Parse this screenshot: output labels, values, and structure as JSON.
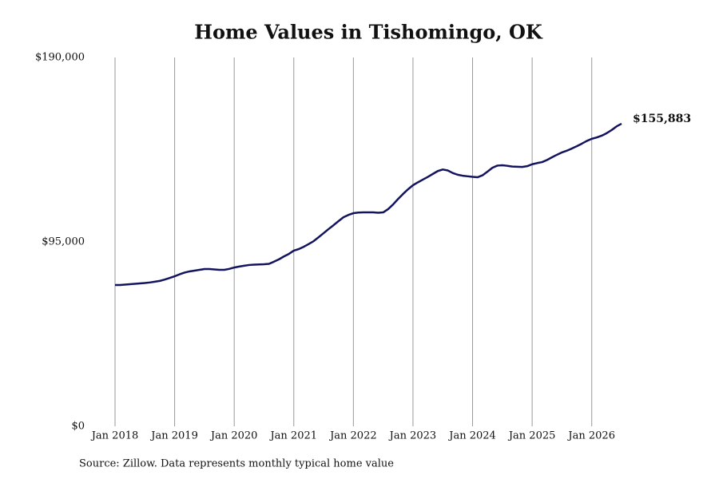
{
  "chart_data": {
    "type": "line",
    "title": "Home Values in Tishomingo, OK",
    "source": "Source: Zillow. Data represents monthly typical home value",
    "x": [
      "2018-01",
      "2018-02",
      "2018-03",
      "2018-04",
      "2018-05",
      "2018-06",
      "2018-07",
      "2018-08",
      "2018-09",
      "2018-10",
      "2018-11",
      "2018-12",
      "2019-01",
      "2019-02",
      "2019-03",
      "2019-04",
      "2019-05",
      "2019-06",
      "2019-07",
      "2019-08",
      "2019-09",
      "2019-10",
      "2019-11",
      "2019-12",
      "2020-01",
      "2020-02",
      "2020-03",
      "2020-04",
      "2020-05",
      "2020-06",
      "2020-07",
      "2020-08",
      "2020-09",
      "2020-10",
      "2020-11",
      "2020-12",
      "2021-01",
      "2021-02",
      "2021-03",
      "2021-04",
      "2021-05",
      "2021-06",
      "2021-07",
      "2021-08",
      "2021-09",
      "2021-10",
      "2021-11",
      "2021-12",
      "2022-01",
      "2022-02",
      "2022-03",
      "2022-04",
      "2022-05",
      "2022-06",
      "2022-07",
      "2022-08",
      "2022-09",
      "2022-10",
      "2022-11",
      "2022-12",
      "2023-01",
      "2023-02",
      "2023-03",
      "2023-04",
      "2023-05",
      "2023-06",
      "2023-07",
      "2023-08",
      "2023-09",
      "2023-10",
      "2023-11",
      "2023-12",
      "2024-01",
      "2024-02",
      "2024-03",
      "2024-04",
      "2024-05",
      "2024-06",
      "2024-07",
      "2024-08",
      "2024-09",
      "2024-10",
      "2024-11",
      "2024-12",
      "2025-01",
      "2025-02",
      "2025-03",
      "2025-04",
      "2025-05",
      "2025-06",
      "2025-07",
      "2025-08",
      "2025-09",
      "2025-10",
      "2025-11",
      "2025-12",
      "2026-01",
      "2026-02",
      "2026-03",
      "2026-04",
      "2026-05",
      "2026-06",
      "2026-07"
    ],
    "series": [
      {
        "color": "#14145e",
        "values": [
          72800,
          72800,
          73000,
          73200,
          73400,
          73600,
          73800,
          74100,
          74500,
          74900,
          75600,
          76400,
          77300,
          78300,
          79200,
          79800,
          80200,
          80600,
          81000,
          81000,
          80800,
          80600,
          80600,
          81100,
          81800,
          82300,
          82700,
          83100,
          83300,
          83400,
          83500,
          83700,
          84800,
          86000,
          87500,
          88800,
          90500,
          91300,
          92500,
          93900,
          95400,
          97400,
          99500,
          101600,
          103600,
          105700,
          107700,
          108900,
          109800,
          110100,
          110200,
          110200,
          110200,
          110000,
          110200,
          111900,
          114300,
          117100,
          119700,
          122100,
          124200,
          125700,
          127100,
          128500,
          130000,
          131500,
          132300,
          131800,
          130500,
          129600,
          129100,
          128800,
          128500,
          128300,
          129300,
          131200,
          133200,
          134300,
          134500,
          134200,
          133800,
          133700,
          133600,
          134000,
          135000,
          135600,
          136100,
          137200,
          138600,
          139900,
          141100,
          142000,
          143100,
          144300,
          145600,
          147000,
          148100,
          148800,
          149700,
          151000,
          152600,
          154500,
          155883
        ]
      }
    ],
    "annotations": [
      {
        "text": "$155,883"
      }
    ],
    "xlim": [
      "2018-01",
      "2026-07"
    ],
    "xticks": [
      {
        "value": "2018-01",
        "label": "Jan 2018"
      },
      {
        "value": "2019-01",
        "label": "Jan 2019"
      },
      {
        "value": "2020-01",
        "label": "Jan 2020"
      },
      {
        "value": "2021-01",
        "label": "Jan 2021"
      },
      {
        "value": "2022-01",
        "label": "Jan 2022"
      },
      {
        "value": "2023-01",
        "label": "Jan 2023"
      },
      {
        "value": "2024-01",
        "label": "Jan 2024"
      },
      {
        "value": "2025-01",
        "label": "Jan 2025"
      },
      {
        "value": "2026-01",
        "label": "Jan 2026"
      }
    ],
    "ylim": [
      0,
      190000
    ],
    "yticks": [
      {
        "value": 0,
        "label": "$0"
      },
      {
        "value": 95000,
        "label": "$95,000"
      },
      {
        "value": 190000,
        "label": "$190,000"
      }
    ],
    "grid": "x"
  }
}
